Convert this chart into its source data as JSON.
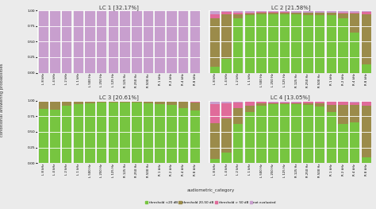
{
  "titles": [
    "LC 1 [32.17%]",
    "LC 2 [21.58%]",
    "LC 3 [20.61%]",
    "LC 4 [13.05%]"
  ],
  "categories": [
    "L 8 kHz",
    "L 4 kHz",
    "L 2 kHz",
    "L 1 kHz",
    "L 500 Hz",
    "L 250 Hz",
    "L 125 Hz",
    "R 125 Hz",
    "R 250 Hz",
    "R 500 Hz",
    "R 1 kHz",
    "R 2 kHz",
    "R 4 kHz",
    "R 8 kHz"
  ],
  "colors": {
    "green": "#77c540",
    "olive": "#9b8b4a",
    "pink": "#e06b9a",
    "purple": "#c89fce"
  },
  "legend_labels": [
    "threshold <20 dB",
    "threshold 20-50 dB",
    "threshold > 50 dB",
    "not evaluated"
  ],
  "xlabel": "audiometric_category",
  "ylabel": "conditional answering probabilities",
  "lc1": {
    "green": [
      0.0,
      0.0,
      0.0,
      0.0,
      0.0,
      0.0,
      0.0,
      0.0,
      0.0,
      0.0,
      0.0,
      0.0,
      0.0,
      0.0
    ],
    "olive": [
      0.0,
      0.0,
      0.0,
      0.0,
      0.0,
      0.0,
      0.0,
      0.0,
      0.0,
      0.0,
      0.0,
      0.0,
      0.0,
      0.0
    ],
    "pink": [
      0.0,
      0.0,
      0.0,
      0.0,
      0.0,
      0.0,
      0.0,
      0.0,
      0.0,
      0.0,
      0.0,
      0.0,
      0.0,
      0.0
    ],
    "purple": [
      1.0,
      1.0,
      1.0,
      1.0,
      1.0,
      1.0,
      1.0,
      1.0,
      1.0,
      1.0,
      1.0,
      1.0,
      1.0,
      1.0
    ]
  },
  "lc2": {
    "green": [
      0.09,
      0.22,
      0.88,
      0.92,
      0.94,
      0.94,
      0.94,
      0.94,
      0.93,
      0.93,
      0.92,
      0.88,
      0.65,
      0.14
    ],
    "olive": [
      0.78,
      0.72,
      0.06,
      0.03,
      0.02,
      0.02,
      0.02,
      0.02,
      0.03,
      0.03,
      0.04,
      0.07,
      0.3,
      0.8
    ],
    "pink": [
      0.07,
      0.04,
      0.02,
      0.02,
      0.02,
      0.02,
      0.02,
      0.01,
      0.01,
      0.01,
      0.01,
      0.01,
      0.02,
      0.04
    ],
    "purple": [
      0.06,
      0.02,
      0.04,
      0.03,
      0.02,
      0.02,
      0.02,
      0.03,
      0.03,
      0.03,
      0.03,
      0.04,
      0.03,
      0.02
    ]
  },
  "lc3": {
    "green": [
      0.87,
      0.86,
      0.92,
      0.94,
      0.96,
      0.97,
      0.97,
      0.97,
      0.97,
      0.96,
      0.95,
      0.93,
      0.88,
      0.84
    ],
    "olive": [
      0.11,
      0.12,
      0.06,
      0.04,
      0.02,
      0.01,
      0.01,
      0.01,
      0.01,
      0.02,
      0.03,
      0.05,
      0.1,
      0.13
    ],
    "pink": [
      0.01,
      0.01,
      0.01,
      0.01,
      0.01,
      0.01,
      0.01,
      0.01,
      0.01,
      0.01,
      0.01,
      0.01,
      0.01,
      0.01
    ],
    "purple": [
      0.01,
      0.01,
      0.01,
      0.01,
      0.01,
      0.01,
      0.01,
      0.01,
      0.01,
      0.01,
      0.01,
      0.01,
      0.01,
      0.02
    ]
  },
  "lc4": {
    "green": [
      0.06,
      0.17,
      0.63,
      0.82,
      0.92,
      0.94,
      0.94,
      0.94,
      0.93,
      0.91,
      0.82,
      0.63,
      0.65,
      0.09
    ],
    "olive": [
      0.58,
      0.55,
      0.25,
      0.1,
      0.04,
      0.02,
      0.02,
      0.02,
      0.03,
      0.05,
      0.11,
      0.3,
      0.28,
      0.83
    ],
    "pink": [
      0.3,
      0.24,
      0.09,
      0.06,
      0.02,
      0.01,
      0.01,
      0.01,
      0.02,
      0.03,
      0.06,
      0.05,
      0.04,
      0.06
    ],
    "purple": [
      0.06,
      0.04,
      0.03,
      0.02,
      0.02,
      0.03,
      0.03,
      0.03,
      0.02,
      0.01,
      0.01,
      0.02,
      0.03,
      0.02
    ]
  },
  "bg_color": "#ebebeb",
  "panel_bg": "#ebebeb",
  "bar_width": 0.85,
  "ylim": [
    0,
    1.0
  ],
  "yticks": [
    0.0,
    0.25,
    0.5,
    0.75,
    1.0
  ]
}
